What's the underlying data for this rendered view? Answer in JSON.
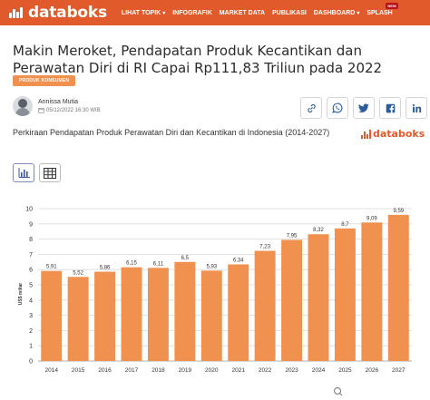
{
  "header": {
    "logo_text": "databoks",
    "nav": [
      {
        "label": "LIHAT TOPIK",
        "has_caret": true
      },
      {
        "label": "INFOGRAFIK",
        "has_caret": false
      },
      {
        "label": "MARKET DATA",
        "has_caret": false
      },
      {
        "label": "PUBLIKASI",
        "has_caret": false
      },
      {
        "label": "DASHBOARD",
        "has_caret": true
      },
      {
        "label": "SPLASH",
        "has_caret": false,
        "badge": "NEW"
      }
    ]
  },
  "article": {
    "title": "Makin Meroket, Pendapatan Produk Kecantikan dan Perawatan Diri di RI Capai Rp111,83 Triliun pada 2022",
    "category": "PRODUK KONSUMEN",
    "author": "Annissa Mutia",
    "date": "05/12/2022 16:30 WIB"
  },
  "share_buttons": [
    "link-icon",
    "whatsapp-icon",
    "twitter-icon",
    "facebook-icon",
    "linkedin-icon"
  ],
  "chart_header": {
    "title": "Perkiraan Pendapatan Produk Perawatan Diri dan Kecantikan di Indonesia (2014-2027)",
    "watermark": "databoks"
  },
  "view_toggle": [
    "bar-chart-icon",
    "table-icon"
  ],
  "colors": {
    "brand": "#e05a2b",
    "bar": "#f1914f",
    "share_icon": "#2c5c9c"
  },
  "chart_data": {
    "type": "bar",
    "categories": [
      "2014",
      "2015",
      "2016",
      "2017",
      "2018",
      "2019",
      "2020",
      "2021",
      "2022",
      "2023",
      "2024",
      "2025",
      "2026",
      "2027"
    ],
    "values": [
      5.91,
      5.52,
      5.86,
      6.15,
      6.11,
      6.5,
      5.93,
      6.34,
      7.23,
      7.95,
      8.32,
      8.7,
      9.09,
      9.59
    ],
    "value_labels": [
      "5,91",
      "5,52",
      "5,86",
      "6,15",
      "6,11",
      "6,5",
      "5,93",
      "6,34",
      "7,23",
      "7,95",
      "8,32",
      "8,7",
      "9,09",
      "9,59"
    ],
    "ylabel": "US$ miliar",
    "ylim": [
      0,
      10
    ],
    "yticks": [
      0,
      1,
      2,
      3,
      4,
      5,
      6,
      7,
      8,
      9,
      10
    ],
    "grid": true,
    "legend": "none"
  }
}
